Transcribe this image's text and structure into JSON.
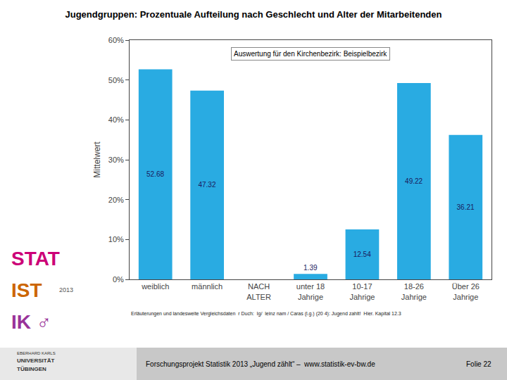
{
  "chart_data": {
    "type": "bar",
    "title": "Jugendgruppen: Prozentuale Aufteilung nach Geschlecht und Alter der Mitarbeitenden",
    "subtitle": "Auswertung für den Kirchenbezirk: Beispielbezirk",
    "ylabel": "Mittelwert",
    "categories": [
      "weiblich",
      "männlich",
      "NACH\nALTER",
      "unter 18\nJahrige",
      "10-17\nJahrige",
      "18-26\nJahrige",
      "Über 26\nJahrige"
    ],
    "values": [
      52.68,
      47.32,
      0.0,
      1.388,
      12.54,
      49.22,
      36.21
    ],
    "value_labels": [
      "52.68",
      "47.32",
      null,
      "1.39",
      "12.54",
      "49.22",
      "36.21"
    ],
    "data_labels": true,
    "color": "#29ABE2",
    "ylim": [
      0,
      60
    ],
    "yticks": [
      {
        "value": 0,
        "label": "0%"
      },
      {
        "value": 10,
        "label": "10%"
      },
      {
        "value": 20,
        "label": "20%"
      },
      {
        "value": 30,
        "label": "30%"
      },
      {
        "value": 40,
        "label": "40%"
      },
      {
        "value": 50,
        "label": "50%"
      },
      {
        "value": 60,
        "label": "60%"
      }
    ],
    "grid": false,
    "annotations": [
      "Erläuterungen und landesweite Vergleichsdaten  r Duch:  Ig/  leinz nam / Caras (l.g.) (20 4): Jugend zahlt!  Hier. Kapital 12.3",
      "Forschungsprojekt Statistik 2013 „Jugend zählt“ –  www.statistik-ev-bw.de",
      "Folie 22",
      "EBERHARD KARLS",
      "UNIVERSITÄT",
      "TÜBINGEN",
      "STAT",
      "IST",
      "IK ♂",
      "2013"
    ]
  }
}
